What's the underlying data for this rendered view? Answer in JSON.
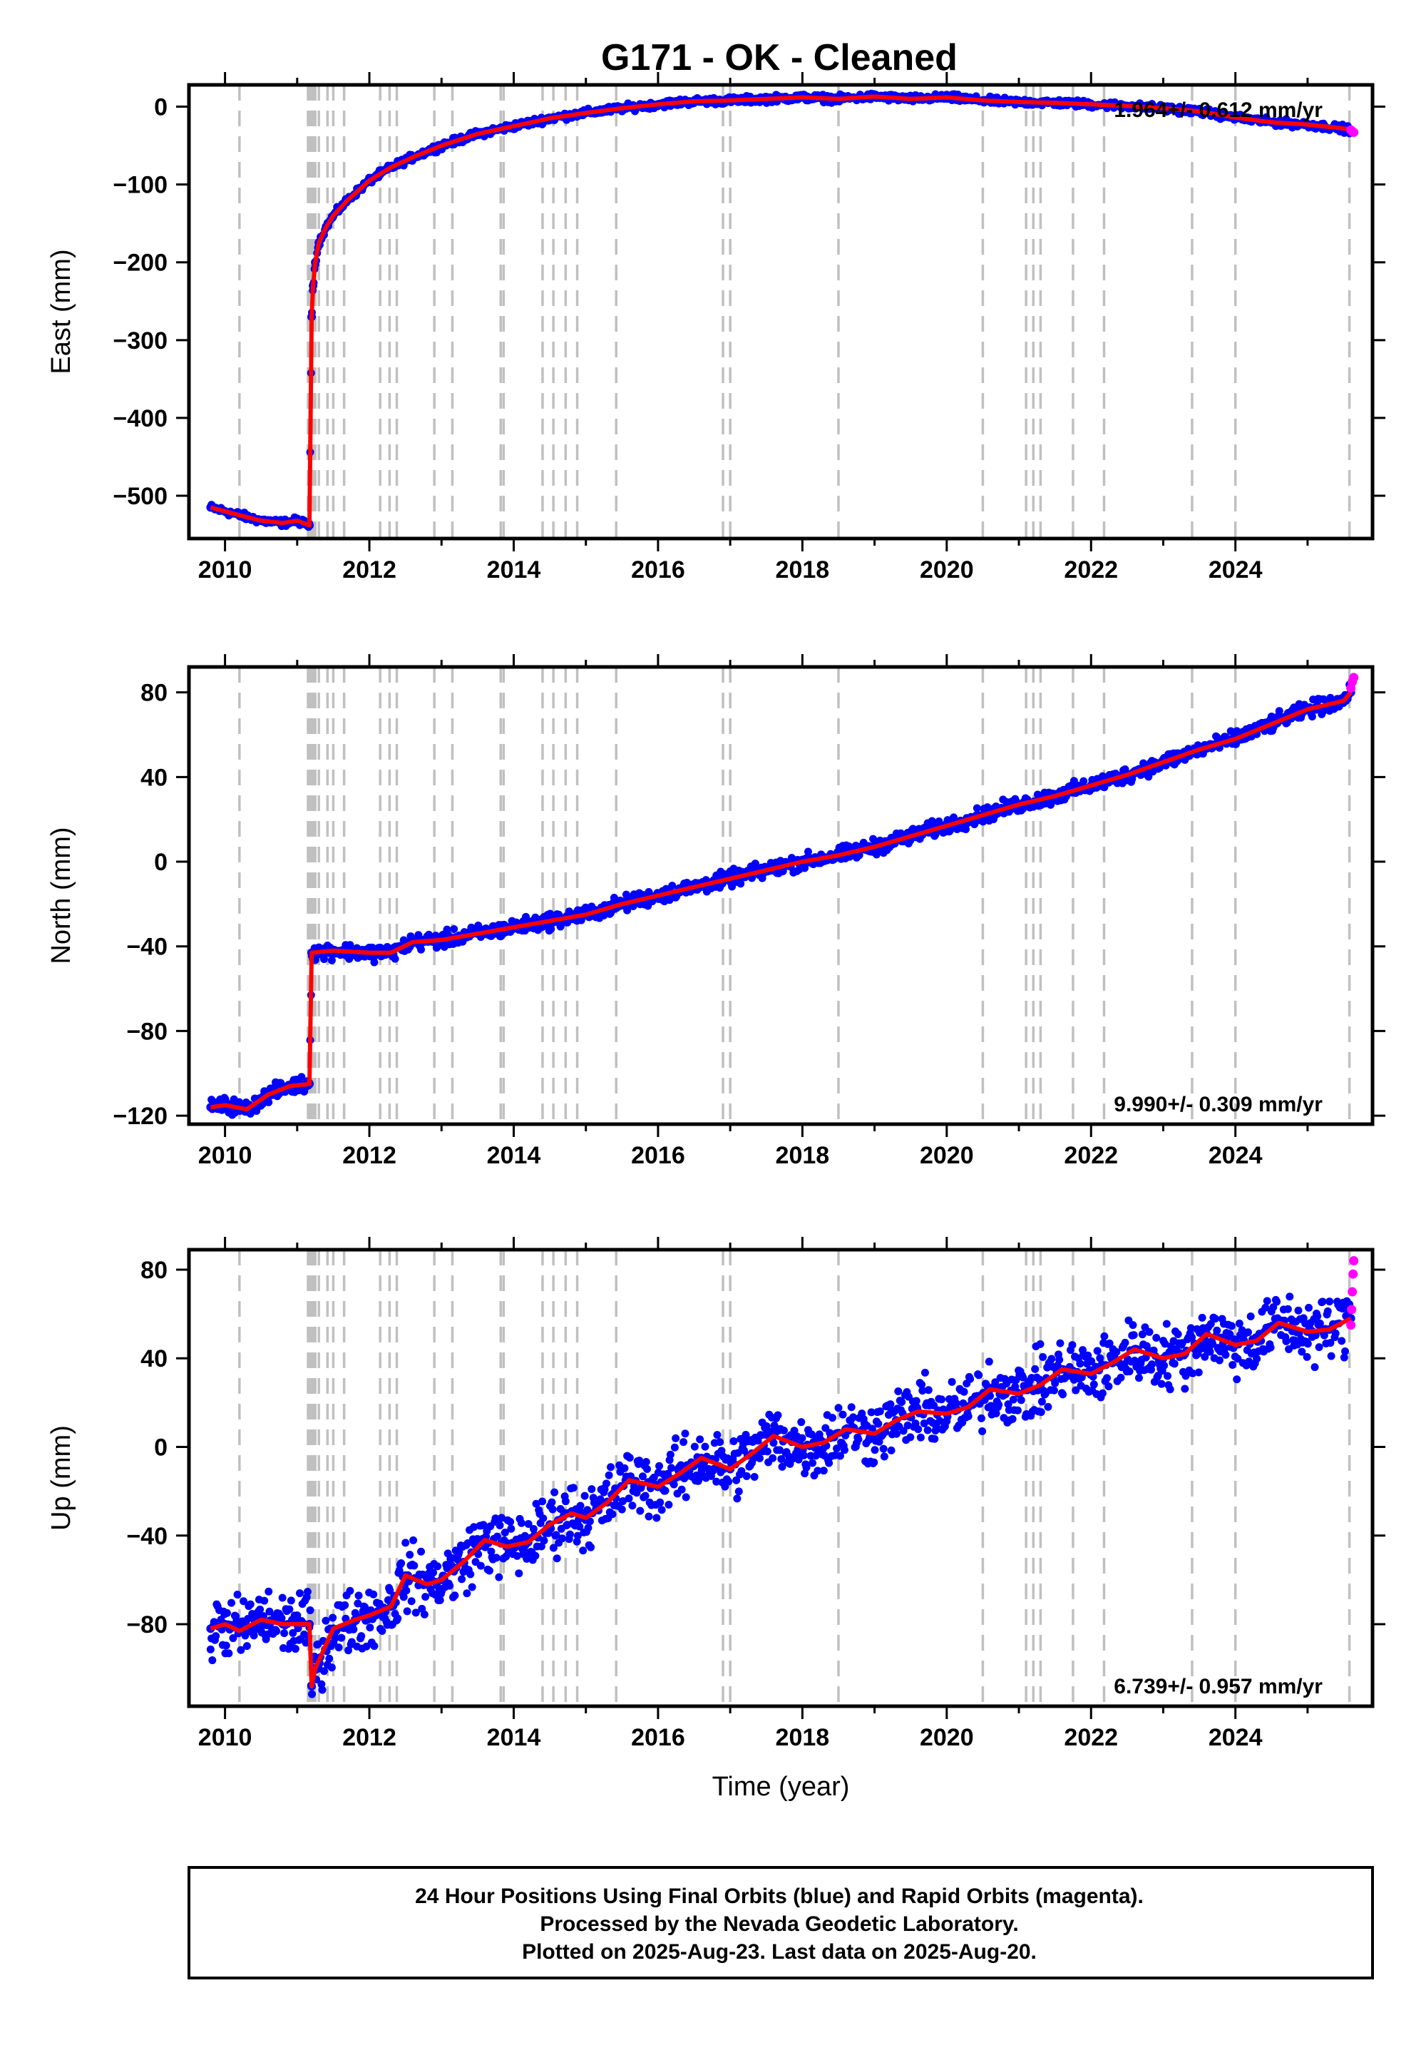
{
  "title": "G171  - OK - Cleaned",
  "footer": {
    "line1": "24 Hour Positions Using Final Orbits (blue) and Rapid Orbits (magenta).",
    "line2": "Processed by the Nevada Geodetic Laboratory.",
    "line3": "Plotted on 2025-Aug-23. Last data on 2025-Aug-20."
  },
  "colors": {
    "final_orbits": "#0000ff",
    "rapid_orbits": "#ff00ff",
    "model": "#ff0000",
    "event_lines": "#c0c0c0"
  },
  "chart_data": [
    {
      "type": "scatter",
      "panel": "east",
      "ylabel": "East (mm)",
      "xlabel": "",
      "xlim": [
        2009.5,
        2025.9
      ],
      "ylim": [
        -555,
        28
      ],
      "xticks": [
        2010,
        2012,
        2014,
        2016,
        2018,
        2020,
        2022,
        2024
      ],
      "yticks": [
        0,
        -100,
        -200,
        -300,
        -400,
        -500
      ],
      "rate_label": "1.964+/- 0.612 mm/yr",
      "rate_placement": "top-right",
      "series": [
        {
          "name": "Final Orbits",
          "x": [
            2009.8,
            2010.0,
            2010.2,
            2010.5,
            2010.8,
            2011.0,
            2011.17,
            2011.2,
            2011.22,
            2011.25,
            2011.3,
            2011.4,
            2011.5,
            2011.7,
            2012.0,
            2012.3,
            2012.6,
            2013.0,
            2013.5,
            2014.0,
            2014.5,
            2015.0,
            2015.5,
            2016.0,
            2016.5,
            2017.0,
            2017.5,
            2018.0,
            2018.5,
            2019.0,
            2019.5,
            2020.0,
            2020.5,
            2021.0,
            2021.5,
            2022.0,
            2022.5,
            2023.0,
            2023.5,
            2024.0,
            2024.5,
            2025.0,
            2025.5,
            2025.6
          ],
          "y": [
            -515,
            -520,
            -525,
            -532,
            -535,
            -532,
            -538,
            -270,
            -230,
            -200,
            -175,
            -155,
            -140,
            -120,
            -95,
            -78,
            -65,
            -50,
            -35,
            -25,
            -15,
            -8,
            -2,
            3,
            7,
            8,
            10,
            12,
            10,
            13,
            10,
            12,
            8,
            6,
            5,
            3,
            1,
            -2,
            -6,
            -14,
            -20,
            -23,
            -28,
            -30
          ]
        },
        {
          "name": "Rapid Orbits",
          "x": [
            2025.6,
            2025.62,
            2025.64
          ],
          "y": [
            -30,
            -32,
            -33
          ]
        }
      ]
    },
    {
      "type": "scatter",
      "panel": "north",
      "ylabel": "North (mm)",
      "xlabel": "",
      "xlim": [
        2009.5,
        2025.9
      ],
      "ylim": [
        -124,
        92
      ],
      "xticks": [
        2010,
        2012,
        2014,
        2016,
        2018,
        2020,
        2022,
        2024
      ],
      "yticks": [
        80,
        40,
        0,
        -40,
        -80,
        -120
      ],
      "rate_label": "9.990+/- 0.309 mm/yr",
      "rate_placement": "bottom-right",
      "series": [
        {
          "name": "Final Orbits",
          "x": [
            2009.8,
            2010.0,
            2010.3,
            2010.6,
            2010.9,
            2011.17,
            2011.2,
            2011.5,
            2012.0,
            2012.3,
            2012.6,
            2013.0,
            2013.5,
            2014.0,
            2014.5,
            2015.0,
            2015.5,
            2016.0,
            2016.5,
            2017.0,
            2017.5,
            2018.0,
            2018.5,
            2019.0,
            2019.5,
            2020.0,
            2020.5,
            2021.0,
            2021.5,
            2022.0,
            2022.5,
            2023.0,
            2023.5,
            2024.0,
            2024.5,
            2025.0,
            2025.5,
            2025.6
          ],
          "y": [
            -116,
            -115,
            -117,
            -110,
            -106,
            -105,
            -43,
            -42,
            -43,
            -43,
            -38,
            -37,
            -34,
            -31,
            -28,
            -25,
            -20,
            -16,
            -12,
            -8,
            -4,
            0,
            3,
            7,
            12,
            17,
            22,
            27,
            31,
            36,
            41,
            47,
            53,
            58,
            65,
            72,
            76,
            80
          ]
        },
        {
          "name": "Rapid Orbits",
          "x": [
            2025.6,
            2025.62,
            2025.64
          ],
          "y": [
            82,
            85,
            87
          ]
        }
      ]
    },
    {
      "type": "scatter",
      "panel": "up",
      "ylabel": "Up (mm)",
      "xlabel": "Time (year)",
      "xlim": [
        2009.5,
        2025.9
      ],
      "ylim": [
        -117,
        89
      ],
      "xticks": [
        2010,
        2012,
        2014,
        2016,
        2018,
        2020,
        2022,
        2024
      ],
      "yticks": [
        80,
        40,
        0,
        -40,
        -80
      ],
      "rate_label": "6.739+/- 0.957 mm/yr",
      "rate_placement": "bottom-right",
      "series": [
        {
          "name": "Final Orbits",
          "x": [
            2009.8,
            2010.0,
            2010.2,
            2010.5,
            2010.8,
            2011.0,
            2011.17,
            2011.2,
            2011.25,
            2011.5,
            2011.8,
            2012.0,
            2012.3,
            2012.5,
            2012.8,
            2013.0,
            2013.3,
            2013.6,
            2013.9,
            2014.2,
            2014.5,
            2014.8,
            2015.0,
            2015.3,
            2015.6,
            2016.0,
            2016.3,
            2016.6,
            2017.0,
            2017.3,
            2017.6,
            2018.0,
            2018.3,
            2018.6,
            2019.0,
            2019.3,
            2019.6,
            2020.0,
            2020.3,
            2020.6,
            2021.0,
            2021.3,
            2021.6,
            2022.0,
            2022.3,
            2022.6,
            2023.0,
            2023.3,
            2023.6,
            2024.0,
            2024.3,
            2024.6,
            2025.0,
            2025.3,
            2025.6
          ],
          "y": [
            -82,
            -80,
            -83,
            -78,
            -80,
            -80,
            -80,
            -108,
            -100,
            -82,
            -78,
            -76,
            -72,
            -58,
            -62,
            -60,
            -52,
            -42,
            -45,
            -43,
            -35,
            -30,
            -32,
            -25,
            -15,
            -18,
            -12,
            -5,
            -10,
            -3,
            5,
            0,
            2,
            8,
            6,
            12,
            16,
            15,
            18,
            26,
            24,
            28,
            35,
            33,
            38,
            44,
            40,
            42,
            51,
            46,
            48,
            56,
            52,
            53,
            58
          ]
        },
        {
          "name": "Rapid Orbits",
          "x": [
            2025.6,
            2025.61,
            2025.62,
            2025.63,
            2025.64
          ],
          "y": [
            55,
            62,
            70,
            78,
            84
          ]
        }
      ]
    }
  ]
}
